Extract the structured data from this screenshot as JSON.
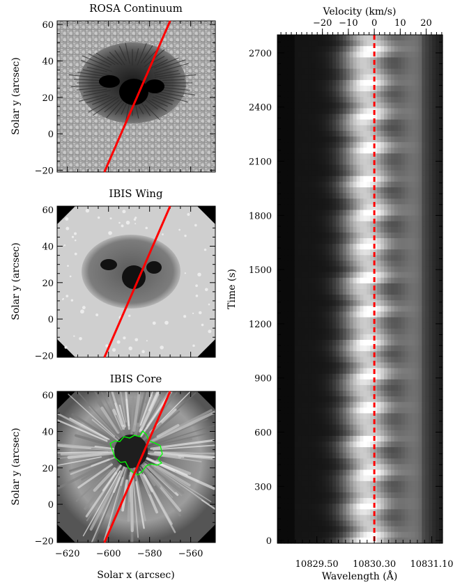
{
  "figure": {
    "panels": [
      {
        "id": "rosa",
        "title": "ROSA Continuum",
        "ylabel": "Solar y (arcsec)"
      },
      {
        "id": "wing",
        "title": "IBIS Wing",
        "ylabel": "Solar y (arcsec)"
      },
      {
        "id": "core",
        "title": "IBIS Core",
        "ylabel": "Solar y (arcsec)",
        "xlabel": "Solar x (arcsec)"
      }
    ],
    "image_axes": {
      "xlim": [
        -625,
        -548
      ],
      "ylim": [
        -21,
        62
      ],
      "xticks": [
        -620,
        -600,
        -580,
        -560
      ],
      "xtick_labels": [
        "−620",
        "−600",
        "−580",
        "−560"
      ],
      "yticks": [
        -20,
        0,
        20,
        40,
        60
      ],
      "ytick_labels": [
        "−20",
        "0",
        "20",
        "40",
        "60"
      ]
    },
    "slit": {
      "x1": -602,
      "y1": -21,
      "x2": -570,
      "y2": 62,
      "color": "#ff0000"
    },
    "umbra_contour_color": "#00ff00",
    "spectrogram": {
      "xlabel": "Wavelength (Å)",
      "ylabel": "Time (s)",
      "top_label": "Velocity (km/s)",
      "wavelength_ticks": [
        10829.5,
        10830.3,
        10831.1
      ],
      "wavelength_tick_labels": [
        "10829.50",
        "10830.30",
        "10831.10"
      ],
      "velocity_ticks": [
        -20,
        -10,
        0,
        10,
        20
      ],
      "velocity_tick_labels": [
        "−20",
        "−10",
        "0",
        "10",
        "20"
      ],
      "time_ticks": [
        0,
        300,
        600,
        900,
        1200,
        1500,
        1800,
        2100,
        2400,
        2700
      ],
      "time_tick_labels": [
        "0",
        "300",
        "600",
        "900",
        "1200",
        "1500",
        "1800",
        "2100",
        "2400",
        "2700"
      ],
      "xlim": [
        10828.95,
        10831.25
      ],
      "ylim": [
        -15,
        2800
      ],
      "rest_wavelength": 10830.3,
      "rest_line_color": "#ff0000"
    }
  }
}
